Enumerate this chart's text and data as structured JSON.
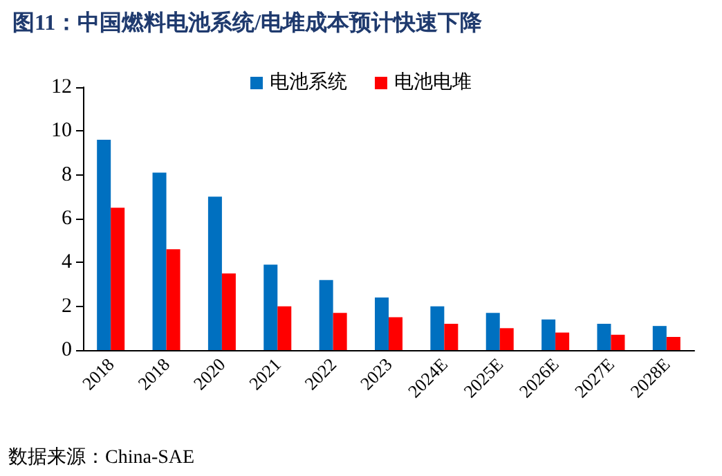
{
  "chart_data": {
    "type": "bar",
    "title": "图11：中国燃料电池系统/电堆成本预计快速下降",
    "categories": [
      "2018",
      "2018",
      "2020",
      "2021",
      "2022",
      "2023",
      "2024E",
      "2025E",
      "2026E",
      "2027E",
      "2028E"
    ],
    "series": [
      {
        "name": "电池系统",
        "color": "#0070c0",
        "values": [
          9.6,
          8.1,
          7.0,
          3.9,
          3.2,
          2.4,
          2.0,
          1.7,
          1.4,
          1.2,
          1.1
        ]
      },
      {
        "name": "电池电堆",
        "color": "#ff0000",
        "values": [
          6.5,
          4.6,
          3.5,
          2.0,
          1.7,
          1.5,
          1.2,
          1.0,
          0.8,
          0.7,
          0.6
        ]
      }
    ],
    "ylim": [
      0,
      12
    ],
    "yticks": [
      0,
      2,
      4,
      6,
      8,
      10,
      12
    ],
    "grid": false,
    "legend": "top",
    "annotations": [
      "数据来源：China-SAE"
    ]
  }
}
